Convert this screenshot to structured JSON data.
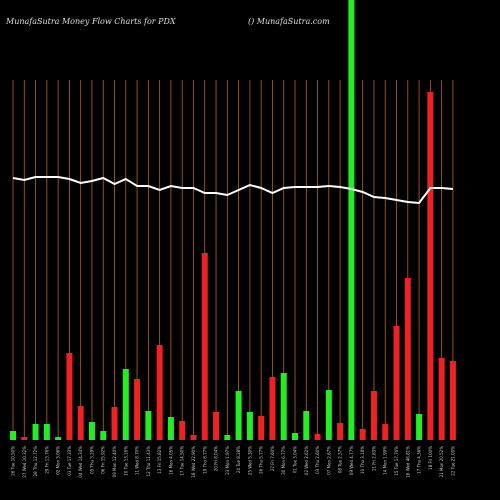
{
  "chart_data": {
    "type": "bar",
    "title": "MunafaSutra  Money Flow  Charts for PDX",
    "subtitle": "() MunafaSutra.com",
    "categories": [
      "26 Tue 10.50%",
      "27 Wed 10.32%",
      "28 Thu 12.72%",
      "29 Fri 13.76%",
      "02 Mon 3.06%",
      "03 Tue 17.33%",
      "04 Wed 14.34%",
      "05 Thu 3.29%",
      "06 Fri 15.92%",
      "09 Mon 12.40%",
      "10 Tue 13.16%",
      "11 Wed 8.70%",
      "12 Thu 11.43%",
      "13 Fri 15.82%",
      "16 Mon 4.05%",
      "17 Tue 14.50%",
      "18 Wed 22.90%",
      "19 Thu 8.77%",
      "20 Fri 8.04%",
      "23 Mon 1.97%",
      "24 Tue 8.28%",
      "25 Wed 5.30%",
      "26 Thu 5.77%",
      "27 Fri 7.60%",
      "30 Mon 6.77%",
      "01 Tue 3.04%",
      "02 Wed 2.62%",
      "03 Thu 2.60%",
      "07 Mon 2.67%",
      "08 Tue 2.37%",
      "09 Wed 4.77%",
      "10 Thu 3.18%",
      "11 Fri 2.83%",
      "14 Mon 1.99%",
      "15 Tue 17.76%",
      "16 Wed 46.81%",
      "17 Thu 4.36%",
      "18 Fri 100%",
      "21 Mon 20.52%",
      "22 Tue 21.00%"
    ],
    "series": [
      {
        "name": "Money Flow",
        "values": [
          9,
          3,
          16,
          16,
          3,
          87,
          34,
          18,
          9,
          33,
          71,
          61,
          29,
          95,
          23,
          19,
          5,
          187,
          28,
          5,
          49,
          28,
          24,
          63,
          67,
          7,
          29,
          6,
          50,
          17,
          450,
          11,
          49,
          16,
          114,
          162,
          26,
          348,
          82,
          79
        ],
        "colors": [
          "#22ee22",
          "#ee2222",
          "#22ee22",
          "#22ee22",
          "#22ee22",
          "#ee2222",
          "#ee2222",
          "#22ee22",
          "#22ee22",
          "#ee2222",
          "#22ee22",
          "#ee2222",
          "#22ee22",
          "#ee2222",
          "#22ee22",
          "#ee2222",
          "#ee2222",
          "#ee2222",
          "#ee2222",
          "#22ee22",
          "#22ee22",
          "#22ee22",
          "#ee2222",
          "#ee2222",
          "#22ee22",
          "#22ee22",
          "#22ee22",
          "#ee2222",
          "#22ee22",
          "#ee2222",
          "#22ee22",
          "#ee2222",
          "#ee2222",
          "#ee2222",
          "#ee2222",
          "#ee2222",
          "#22ee22",
          "#ee2222",
          "#ee2222",
          "#ee2222"
        ]
      },
      {
        "name": "Price",
        "type": "line",
        "color": "#ffffff",
        "values": [
          262,
          260,
          263,
          263,
          263,
          261,
          257,
          259,
          262,
          256,
          261,
          254,
          254,
          250,
          254,
          252,
          252,
          247,
          247,
          245,
          250,
          255,
          252,
          247,
          252,
          253,
          253,
          253,
          254,
          253,
          251,
          248,
          243,
          242,
          240,
          238,
          237,
          252,
          252,
          251
        ]
      }
    ],
    "ylim": [
      0,
      440
    ],
    "grid_color": "#b8641a"
  }
}
